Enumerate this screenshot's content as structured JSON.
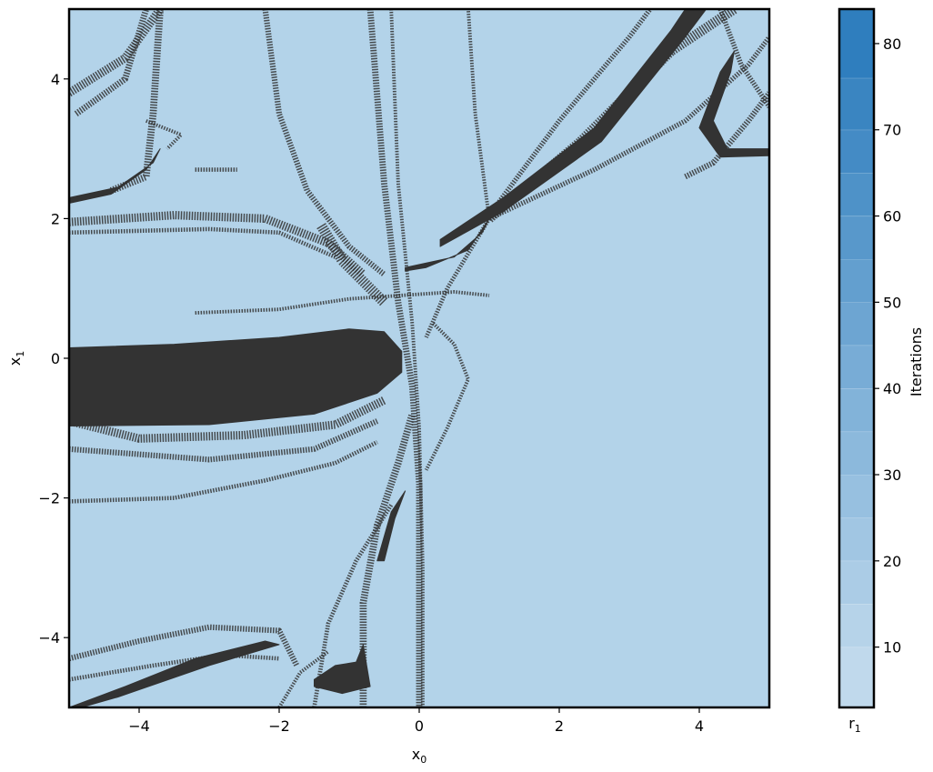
{
  "chart_data": {
    "type": "heatmap",
    "xlabel": "x",
    "xlabel_sub": "0",
    "ylabel": "x",
    "ylabel_sub": "1",
    "xlim": [
      -5,
      5
    ],
    "ylim": [
      -5,
      5
    ],
    "xticks": [
      -4,
      -2,
      0,
      2,
      4
    ],
    "yticks": [
      -4,
      -2,
      0,
      2,
      4
    ],
    "xtick_labels": [
      "−4",
      "−2",
      "0",
      "2",
      "4"
    ],
    "ytick_labels": [
      "−4",
      "−2",
      "0",
      "2",
      "4"
    ],
    "grid": false,
    "background_color": "#b3d3e9",
    "basin_color": "#333333",
    "colorbar": {
      "label": "Iterations",
      "under_label": "r",
      "under_label_sub": "1",
      "range": [
        3,
        84
      ],
      "ticks": [
        10,
        20,
        30,
        40,
        50,
        60,
        70,
        80
      ],
      "tick_labels": [
        "10",
        "20",
        "30",
        "40",
        "50",
        "60",
        "70",
        "80"
      ],
      "levels": [
        3,
        10,
        15,
        20,
        25,
        30,
        35,
        40,
        45,
        50,
        55,
        60,
        65,
        70,
        76,
        84
      ],
      "colors": [
        "#c0d9ec",
        "#b6d3e9",
        "#abcce6",
        "#a1c6e3",
        "#97c0e0",
        "#8cb9dc",
        "#82b3d9",
        "#78acd6",
        "#6da5d2",
        "#639fcf",
        "#5898cb",
        "#4e92c8",
        "#448bc5",
        "#3a85c1",
        "#2f7ebe"
      ]
    },
    "basins": [
      {
        "name": "large-basin",
        "points": [
          [
            -5,
            0.15
          ],
          [
            -3.5,
            0.2
          ],
          [
            -2,
            0.3
          ],
          [
            -1,
            0.42
          ],
          [
            -0.5,
            0.38
          ],
          [
            -0.25,
            0.1
          ],
          [
            -0.25,
            -0.2
          ],
          [
            -0.6,
            -0.5
          ],
          [
            -1.5,
            -0.8
          ],
          [
            -3,
            -0.95
          ],
          [
            -5,
            -0.97
          ]
        ]
      },
      {
        "name": "upper-right-band",
        "points": [
          [
            0.3,
            1.7
          ],
          [
            1.2,
            2.3
          ],
          [
            2.5,
            3.3
          ],
          [
            3.6,
            4.7
          ],
          [
            3.8,
            5
          ],
          [
            4.1,
            5
          ],
          [
            3.8,
            4.6
          ],
          [
            2.6,
            3.1
          ],
          [
            1.2,
            2.1
          ],
          [
            0.3,
            1.6
          ]
        ]
      },
      {
        "name": "right-hook",
        "points": [
          [
            5,
            2.9
          ],
          [
            4.3,
            2.88
          ],
          [
            4.0,
            3.3
          ],
          [
            4.3,
            4.1
          ],
          [
            4.5,
            4.4
          ],
          [
            4.45,
            4.1
          ],
          [
            4.2,
            3.4
          ],
          [
            4.4,
            3.0
          ],
          [
            5,
            3.0
          ]
        ]
      },
      {
        "name": "left-arc",
        "points": [
          [
            -5,
            2.3
          ],
          [
            -4.3,
            2.45
          ],
          [
            -3.8,
            2.8
          ],
          [
            -3.7,
            3.0
          ],
          [
            -3.9,
            2.7
          ],
          [
            -4.4,
            2.35
          ],
          [
            -5,
            2.22
          ]
        ]
      },
      {
        "name": "center-crescent",
        "points": [
          [
            -0.2,
            1.3
          ],
          [
            0.5,
            1.45
          ],
          [
            0.9,
            1.8
          ],
          [
            1.0,
            2.0
          ],
          [
            0.7,
            1.55
          ],
          [
            0.1,
            1.3
          ],
          [
            -0.2,
            1.25
          ]
        ]
      },
      {
        "name": "lower-lobe",
        "points": [
          [
            -1.5,
            -4.6
          ],
          [
            -1.2,
            -4.4
          ],
          [
            -0.9,
            -4.35
          ],
          [
            -0.8,
            -4.1
          ],
          [
            -0.7,
            -4.7
          ],
          [
            -1.1,
            -4.8
          ],
          [
            -1.5,
            -4.7
          ]
        ]
      },
      {
        "name": "lower-streak",
        "points": [
          [
            -0.6,
            -2.9
          ],
          [
            -0.4,
            -2.2
          ],
          [
            -0.2,
            -1.9
          ],
          [
            -0.35,
            -2.3
          ],
          [
            -0.5,
            -2.9
          ]
        ]
      },
      {
        "name": "bottom-band",
        "points": [
          [
            -5,
            -5
          ],
          [
            -4.2,
            -4.7
          ],
          [
            -3.2,
            -4.3
          ],
          [
            -2.2,
            -4.05
          ],
          [
            -2.0,
            -4.1
          ],
          [
            -3.0,
            -4.4
          ],
          [
            -4.3,
            -4.85
          ],
          [
            -5,
            -5.05
          ]
        ]
      }
    ],
    "filaments": [
      {
        "points": [
          [
            -5,
            3.8
          ],
          [
            -4.2,
            4.3
          ],
          [
            -3.7,
            5
          ]
        ],
        "w": 0.12
      },
      {
        "points": [
          [
            -4.9,
            3.5
          ],
          [
            -4.2,
            4.0
          ],
          [
            -3.9,
            5
          ]
        ],
        "w": 0.09
      },
      {
        "points": [
          [
            -3.7,
            5
          ],
          [
            -3.8,
            3.5
          ],
          [
            -3.9,
            2.6
          ],
          [
            -4.4,
            2.4
          ]
        ],
        "w": 0.1
      },
      {
        "points": [
          [
            -5,
            1.95
          ],
          [
            -3.5,
            2.05
          ],
          [
            -2.2,
            2.0
          ],
          [
            -1.3,
            1.65
          ],
          [
            -0.8,
            1.2
          ]
        ],
        "w": 0.12
      },
      {
        "points": [
          [
            -5,
            1.8
          ],
          [
            -3,
            1.85
          ],
          [
            -2,
            1.8
          ],
          [
            -1.2,
            1.45
          ]
        ],
        "w": 0.06
      },
      {
        "points": [
          [
            -2.2,
            5
          ],
          [
            -2.0,
            3.5
          ],
          [
            -1.6,
            2.4
          ],
          [
            -1.0,
            1.6
          ],
          [
            -0.5,
            1.2
          ]
        ],
        "w": 0.08
      },
      {
        "points": [
          [
            -1.4,
            1.9
          ],
          [
            -1.1,
            1.4
          ],
          [
            -0.8,
            1.1
          ],
          [
            -0.5,
            0.8
          ]
        ],
        "w": 0.15
      },
      {
        "points": [
          [
            -3.2,
            0.65
          ],
          [
            -2,
            0.7
          ],
          [
            -1,
            0.85
          ],
          [
            0.5,
            0.95
          ],
          [
            1,
            0.9
          ]
        ],
        "w": 0.05
      },
      {
        "points": [
          [
            -5,
            -0.9
          ],
          [
            -4,
            -1.15
          ],
          [
            -2.5,
            -1.1
          ],
          [
            -1.2,
            -0.95
          ],
          [
            -0.5,
            -0.6
          ]
        ],
        "w": 0.12
      },
      {
        "points": [
          [
            -5,
            -1.3
          ],
          [
            -3,
            -1.45
          ],
          [
            -1.5,
            -1.3
          ],
          [
            -0.6,
            -0.9
          ]
        ],
        "w": 0.08
      },
      {
        "points": [
          [
            -5,
            -2.05
          ],
          [
            -3.5,
            -2.0
          ],
          [
            -2.2,
            -1.75
          ],
          [
            -1.2,
            -1.5
          ],
          [
            -0.6,
            -1.2
          ]
        ],
        "w": 0.06
      },
      {
        "points": [
          [
            -0.7,
            5
          ],
          [
            -0.5,
            2.5
          ],
          [
            -0.3,
            0.8
          ],
          [
            -0.1,
            -0.4
          ],
          [
            0.0,
            -1.8
          ],
          [
            0.0,
            -5
          ]
        ],
        "w": 0.09
      },
      {
        "points": [
          [
            -0.4,
            5
          ],
          [
            -0.3,
            2.5
          ],
          [
            -0.1,
            0.5
          ],
          [
            0.0,
            -1.0
          ],
          [
            0.05,
            -3
          ],
          [
            0.05,
            -5
          ]
        ],
        "w": 0.05
      },
      {
        "points": [
          [
            0.2,
            0.5
          ],
          [
            0.5,
            0.2
          ],
          [
            0.7,
            -0.3
          ],
          [
            0.4,
            -1.0
          ],
          [
            0.1,
            -1.6
          ]
        ],
        "w": 0.05
      },
      {
        "points": [
          [
            -0.8,
            -5
          ],
          [
            -0.8,
            -3.5
          ],
          [
            -0.6,
            -2.4
          ],
          [
            -0.3,
            -1.5
          ],
          [
            -0.1,
            -0.8
          ]
        ],
        "w": 0.1
      },
      {
        "points": [
          [
            -1.5,
            -5
          ],
          [
            -1.3,
            -3.8
          ],
          [
            -0.9,
            -2.9
          ],
          [
            -0.4,
            -2.1
          ]
        ],
        "w": 0.06
      },
      {
        "points": [
          [
            -5,
            -4.3
          ],
          [
            -4,
            -4.05
          ],
          [
            -3,
            -3.85
          ],
          [
            -2.0,
            -3.9
          ],
          [
            -1.75,
            -4.4
          ]
        ],
        "w": 0.08
      },
      {
        "points": [
          [
            -5,
            -4.6
          ],
          [
            -3.8,
            -4.4
          ],
          [
            -2.8,
            -4.25
          ],
          [
            -2.0,
            -4.3
          ]
        ],
        "w": 0.06
      },
      {
        "points": [
          [
            -2.0,
            -5
          ],
          [
            -1.7,
            -4.5
          ],
          [
            -1.3,
            -4.2
          ]
        ],
        "w": 0.05
      },
      {
        "points": [
          [
            1.0,
            2.0
          ],
          [
            2.3,
            3.1
          ],
          [
            3.6,
            4.4
          ],
          [
            4.5,
            5
          ]
        ],
        "w": 0.14
      },
      {
        "points": [
          [
            1.0,
            2.05
          ],
          [
            2.0,
            3.4
          ],
          [
            3.0,
            4.6
          ],
          [
            3.3,
            5
          ]
        ],
        "w": 0.07
      },
      {
        "points": [
          [
            1.0,
            2.0
          ],
          [
            2.5,
            2.7
          ],
          [
            3.8,
            3.4
          ],
          [
            4.7,
            4.2
          ],
          [
            5,
            4.6
          ]
        ],
        "w": 0.07
      },
      {
        "points": [
          [
            1.0,
            2.0
          ],
          [
            0.8,
            3.5
          ],
          [
            0.7,
            5
          ]
        ],
        "w": 0.05
      },
      {
        "points": [
          [
            1.0,
            2.0
          ],
          [
            0.4,
            1.0
          ],
          [
            0.1,
            0.3
          ]
        ],
        "w": 0.06
      },
      {
        "points": [
          [
            3.8,
            2.6
          ],
          [
            4.2,
            2.8
          ],
          [
            4.7,
            3.4
          ],
          [
            5,
            3.8
          ]
        ],
        "w": 0.08
      },
      {
        "points": [
          [
            4.3,
            5
          ],
          [
            4.6,
            4.2
          ],
          [
            5,
            3.6
          ]
        ],
        "w": 0.07
      },
      {
        "points": [
          [
            -3.9,
            3.4
          ],
          [
            -3.4,
            3.2
          ],
          [
            -3.6,
            3.0
          ]
        ],
        "w": 0.05
      },
      {
        "points": [
          [
            -3.2,
            2.7
          ],
          [
            -2.6,
            2.7
          ]
        ],
        "w": 0.06
      }
    ]
  }
}
